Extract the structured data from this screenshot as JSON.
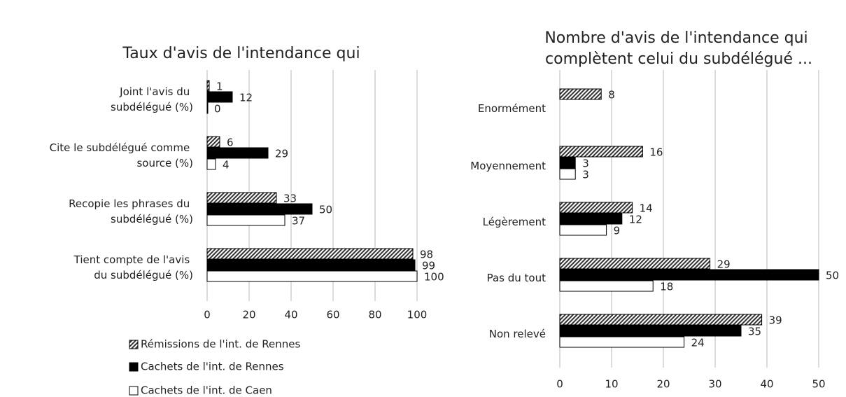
{
  "chart_data": [
    {
      "type": "hbar",
      "title": "Taux d'avis de l'intendance qui",
      "categories": [
        "Joint l'avis du subdélégué (%)",
        "Cite le subdélégué comme source (%)",
        "Recopie les phrases du subdélégué (%)",
        "Tient compte de l'avis du subdélégué (%)"
      ],
      "series": [
        {
          "name": "Rémissions de l'int. de Rennes",
          "color": "#333333",
          "hatch": true,
          "values": [
            1,
            6,
            33,
            98
          ]
        },
        {
          "name": "Cachets de l'int. de Rennes",
          "color": "#000000",
          "values": [
            12,
            29,
            50,
            99
          ]
        },
        {
          "name": "Cachets de l'int. de Caen",
          "color": "#ffffff",
          "values": [
            0,
            4,
            37,
            100
          ]
        }
      ],
      "xlim": [
        0,
        100
      ],
      "xticks": [
        0,
        20,
        40,
        60,
        80,
        100
      ],
      "grid": true,
      "legend": "bottom"
    },
    {
      "type": "hbar",
      "title": "Nombre d'avis de l'intendance qui complètent celui du subdélégué ...",
      "categories": [
        "Enormément",
        "Moyennement",
        "Légèrement",
        "Pas du tout",
        "Non relevé"
      ],
      "series": [
        {
          "color": "#333333",
          "hatch": true,
          "values": [
            8,
            16,
            14,
            29,
            39
          ]
        },
        {
          "color": "#000000",
          "values": [
            null,
            3,
            12,
            50,
            35
          ]
        },
        {
          "color": "#ffffff",
          "values": [
            null,
            3,
            9,
            18,
            24
          ]
        }
      ],
      "xlim": [
        0,
        50
      ],
      "xticks": [
        0,
        10,
        20,
        30,
        40,
        50
      ],
      "grid": true
    }
  ]
}
